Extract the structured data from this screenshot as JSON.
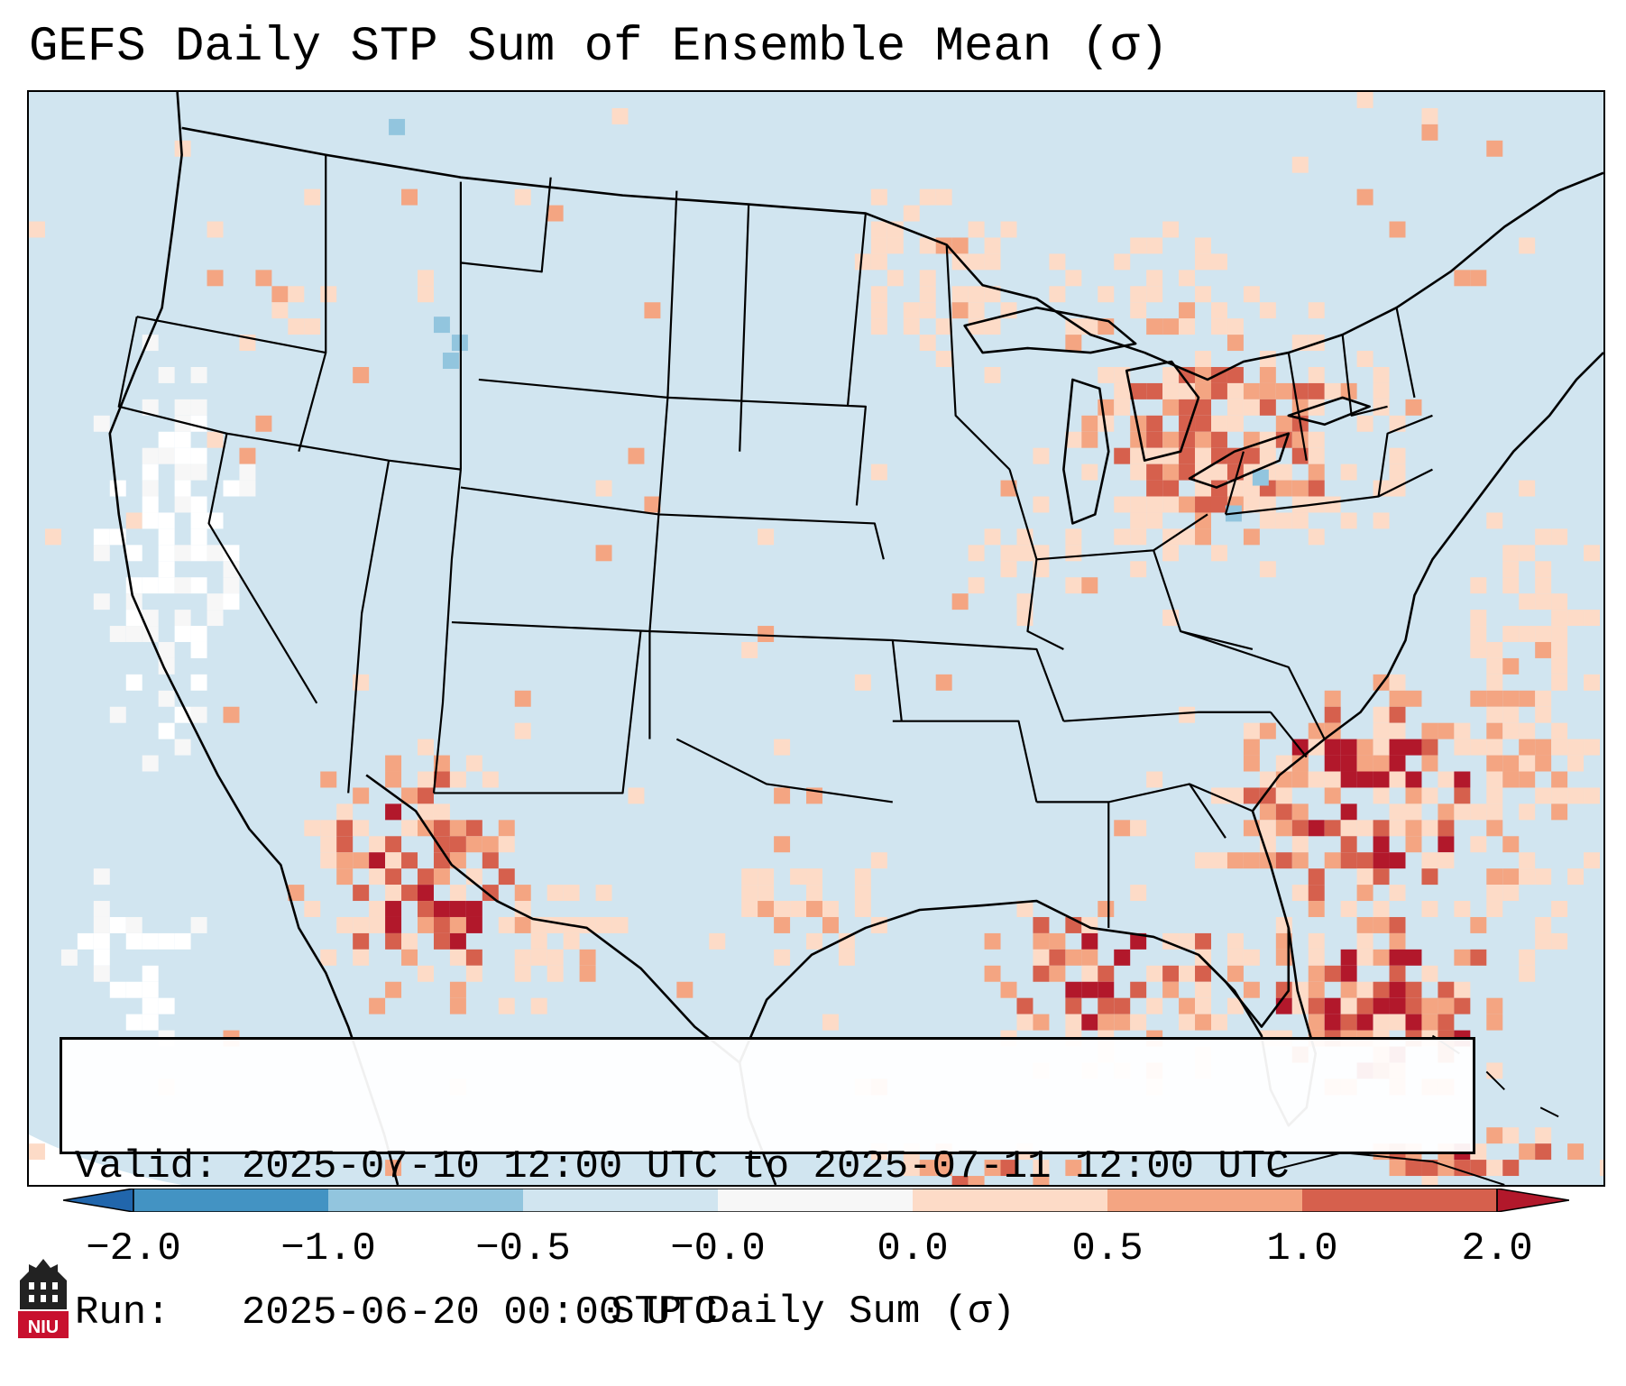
{
  "title": "GEFS Daily STP Sum of Ensemble Mean (σ)",
  "info": {
    "valid_line": "Valid: 2025-07-10 12:00 UTC to 2025-07-11 12:00 UTC",
    "run_line": "Run:   2025-06-20 00:00 UTC"
  },
  "colorbar": {
    "label": "STP Daily Sum (σ)",
    "ticks": [
      "−2.0",
      "−1.0",
      "−0.5",
      "−0.0",
      "0.0",
      "0.5",
      "1.0",
      "2.0"
    ],
    "colors": {
      "extend_low": "#2166ac",
      "b1": "#4393c3",
      "b2": "#92c5de",
      "b3": "#d1e5f0",
      "b4": "#f7f7f7",
      "b5": "#fddbc7",
      "b6": "#f4a582",
      "b7": "#d6604d",
      "extend_high": "#b2182b"
    }
  },
  "map": {
    "background_color": "#d1e5f0",
    "region": "Continental United States, Gulf of Mexico and western Atlantic"
  },
  "logo": {
    "text": "NIU",
    "brand_color": "#c8102e"
  }
}
